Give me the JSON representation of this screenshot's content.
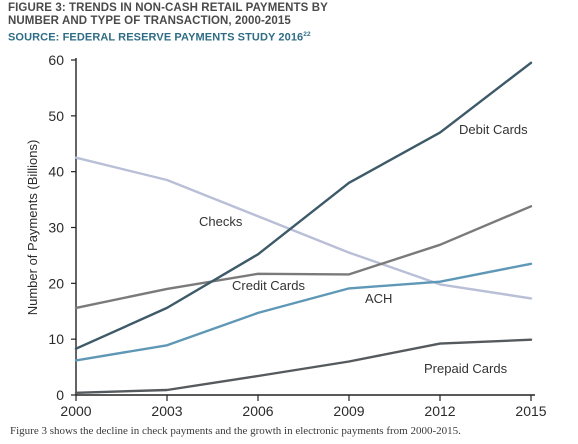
{
  "header": {
    "title_line1": "FIGURE 3: TRENDS IN NON-CASH RETAIL PAYMENTS BY",
    "title_line2": "NUMBER AND TYPE OF TRANSACTION, 2000-2015",
    "source": "SOURCE: FEDERAL RESERVE PAYMENTS STUDY 2016",
    "source_ref": "22"
  },
  "caption": "Figure 3 shows the decline in check payments and the growth in electronic payments from 2000-2015.",
  "chart_data": {
    "type": "line",
    "title": "FIGURE 3: TRENDS IN NON-CASH RETAIL PAYMENTS BY NUMBER AND TYPE OF TRANSACTION, 2000-2015",
    "xlabel": "",
    "ylabel": "Number of Payments (Billions)",
    "x": [
      2000,
      2003,
      2006,
      2009,
      2012,
      2015
    ],
    "x_tick_labels": [
      "2000",
      "2003",
      "2006",
      "2009",
      "2012",
      "2015"
    ],
    "y_ticks": [
      0,
      10,
      20,
      30,
      40,
      50,
      60
    ],
    "ylim": [
      0,
      60
    ],
    "grid": false,
    "legend": "none (inline series labels)",
    "series": [
      {
        "name": "Debit Cards",
        "color": "#3d5a68",
        "values": [
          8.3,
          15.6,
          25.2,
          38.0,
          47.0,
          59.5
        ]
      },
      {
        "name": "Checks",
        "color": "#b9bfd6",
        "values": [
          42.5,
          38.5,
          32.0,
          25.5,
          19.8,
          17.3
        ]
      },
      {
        "name": "Credit Cards",
        "color": "#7a7a7a",
        "values": [
          15.6,
          19.0,
          21.7,
          21.6,
          26.9,
          33.8
        ]
      },
      {
        "name": "ACH",
        "color": "#5f98b6",
        "values": [
          6.2,
          8.9,
          14.7,
          19.1,
          20.3,
          23.5
        ]
      },
      {
        "name": "Prepaid Cards",
        "color": "#555a5e",
        "values": [
          0.4,
          0.9,
          3.4,
          6.0,
          9.2,
          9.9
        ]
      }
    ]
  }
}
